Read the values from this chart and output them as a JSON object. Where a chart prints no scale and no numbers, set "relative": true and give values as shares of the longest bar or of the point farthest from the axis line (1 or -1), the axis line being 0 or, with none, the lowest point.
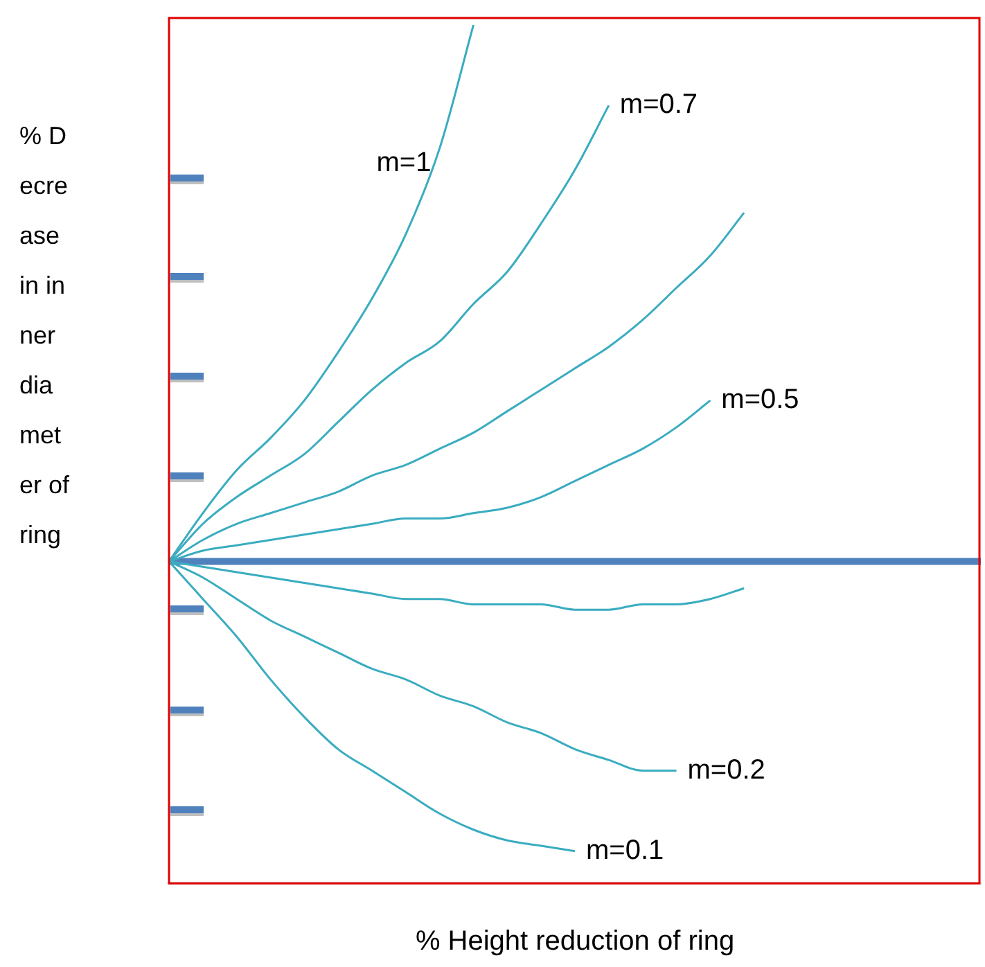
{
  "chart_data": {
    "type": "line",
    "relative": true,
    "ylabel": "% Decrease in inner diameter of ring",
    "xlabel": "% Height reduction of ring",
    "legend": false,
    "ref_lines": [
      {
        "axis": "y",
        "value": 0,
        "color": "#4f81bd"
      }
    ],
    "grid": false,
    "marker": "none",
    "categories": [
      null,
      null,
      null,
      null,
      null,
      null,
      null,
      null,
      null,
      null,
      null,
      null,
      null,
      null,
      null,
      null,
      null,
      null,
      null,
      null,
      null,
      null,
      null,
      null,
      null
    ],
    "series": [
      {
        "name": "m=1",
        "color": "#3aacc0",
        "values": [
          0,
          0.09,
          0.17,
          0.23,
          0.3,
          0.39,
          0.49,
          0.61,
          0.77,
          1,
          null,
          null,
          null,
          null,
          null,
          null,
          null,
          null,
          null,
          null,
          null,
          null,
          null,
          null,
          null
        ]
      },
      {
        "name": "m=0.7",
        "color": "#3aacc0",
        "values": [
          0,
          0.07,
          0.12,
          0.16,
          0.2,
          0.26,
          0.32,
          0.37,
          0.41,
          0.48,
          0.54,
          0.63,
          0.73,
          0.85,
          null,
          null,
          null,
          null,
          null,
          null,
          null,
          null,
          null,
          null,
          null
        ]
      },
      {
        "color": "#3aacc0",
        "values": [
          0,
          0.04,
          0.07,
          0.09,
          0.11,
          0.13,
          0.16,
          0.18,
          0.21,
          0.24,
          0.28,
          0.32,
          0.36,
          0.4,
          0.45,
          0.51,
          0.57,
          0.65,
          null,
          null,
          null,
          null,
          null,
          null,
          null
        ]
      },
      {
        "name": "m=0.5",
        "color": "#3aacc0",
        "values": [
          0,
          0.02,
          0.03,
          0.04,
          0.05,
          0.06,
          0.07,
          0.08,
          0.08,
          0.09,
          0.1,
          0.12,
          0.15,
          0.18,
          0.21,
          0.25,
          0.3,
          null,
          null,
          null,
          null,
          null,
          null,
          null,
          null
        ]
      },
      {
        "color": "#3aacc0",
        "values": [
          0,
          -0.01,
          -0.02,
          -0.03,
          -0.04,
          -0.05,
          -0.06,
          -0.07,
          -0.07,
          -0.08,
          -0.08,
          -0.08,
          -0.09,
          -0.09,
          -0.08,
          -0.08,
          -0.07,
          -0.05,
          null,
          null,
          null,
          null,
          null,
          null,
          null
        ]
      },
      {
        "name": "m=0.2",
        "color": "#3aacc0",
        "values": [
          0,
          -0.03,
          -0.07,
          -0.11,
          -0.14,
          -0.17,
          -0.2,
          -0.22,
          -0.25,
          -0.27,
          -0.3,
          -0.32,
          -0.35,
          -0.37,
          -0.39,
          -0.39,
          null,
          null,
          null,
          null,
          null,
          null,
          null,
          null,
          null
        ]
      },
      {
        "name": "m=0.1",
        "color": "#3aacc0",
        "values": [
          0,
          -0.07,
          -0.14,
          -0.22,
          -0.29,
          -0.35,
          -0.39,
          -0.43,
          -0.47,
          -0.5,
          -0.52,
          -0.53,
          -0.54,
          null,
          null,
          null,
          null,
          null,
          null,
          null,
          null,
          null,
          null,
          null,
          null
        ]
      }
    ]
  }
}
